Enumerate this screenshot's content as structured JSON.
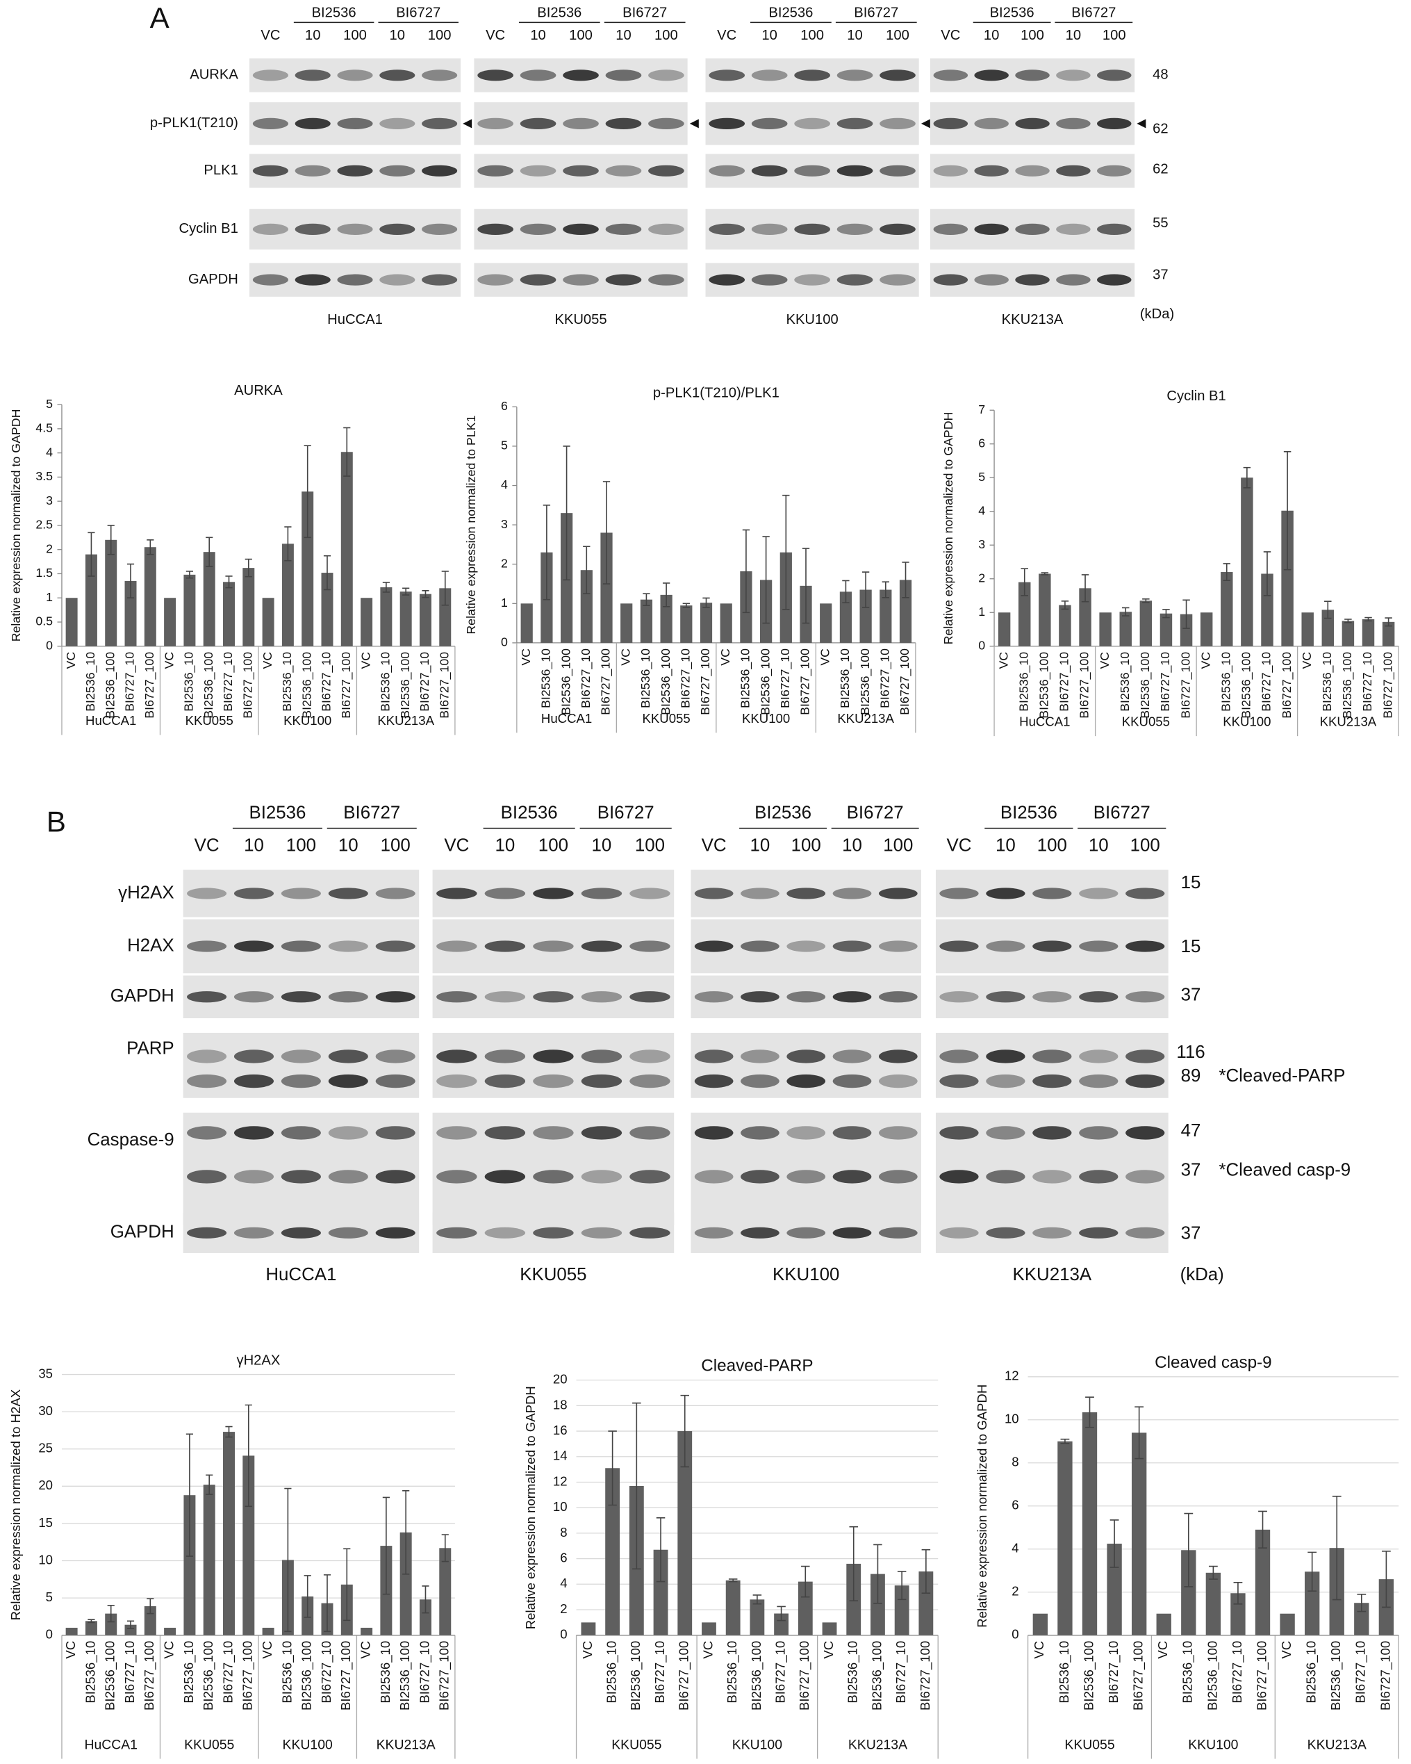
{
  "figure_a": {
    "label": "A",
    "cell_lines": [
      "HuCCA1",
      "KKU055",
      "KKU100",
      "KKU213A"
    ],
    "control": "VC",
    "drugs": [
      "BI2536",
      "BI6727"
    ],
    "doses": [
      "10",
      "100"
    ],
    "unit": "(kDa)",
    "rows": [
      {
        "name": "AURKA",
        "kda": [
          48
        ]
      },
      {
        "name": "p-PLK1(T210)",
        "kda": [
          62
        ]
      },
      {
        "name": "PLK1",
        "kda": [
          62
        ]
      },
      {
        "name": "Cyclin B1",
        "kda": [
          55
        ]
      },
      {
        "name": "GAPDH",
        "kda": [
          37
        ]
      }
    ]
  },
  "figure_b": {
    "label": "B",
    "cell_lines": [
      "HuCCA1",
      "KKU055",
      "KKU100",
      "KKU213A"
    ],
    "control": "VC",
    "drugs": [
      "BI2536",
      "BI6727"
    ],
    "doses": [
      "10",
      "100"
    ],
    "unit": "(kDa)",
    "rows": [
      {
        "name": "γH2AX",
        "kda": [
          15
        ]
      },
      {
        "name": "H2AX",
        "kda": [
          15
        ]
      },
      {
        "name": "GAPDH",
        "kda": [
          37
        ]
      },
      {
        "name": "PARP",
        "kda": [
          116,
          89
        ],
        "note": "*Cleaved-PARP"
      },
      {
        "name": "Caspase-9",
        "kda": [
          47,
          37
        ],
        "note": "*Cleaved casp-9"
      },
      {
        "name": "GAPDH",
        "kda": [
          37
        ]
      }
    ]
  },
  "chart_data": [
    {
      "type": "bar",
      "title": "AURKA",
      "y_label": "Relative expression normalized to GAPDH",
      "color": "#5f5f5f",
      "grid": false,
      "groups": [
        "HuCCA1",
        "KKU055",
        "KKU100",
        "KKU213A"
      ],
      "categories": [
        "VC",
        "BI2536_10",
        "BI2536_100",
        "BI6727_10",
        "BI6727_100",
        "VC",
        "BI2536_10",
        "BI2536_100",
        "BI6727_10",
        "BI6727_100",
        "VC",
        "BI2536_10",
        "BI2536_100",
        "BI6727_10",
        "BI6727_100",
        "VC",
        "BI2536_10",
        "BI2536_100",
        "BI6727_10",
        "BI6727_100"
      ],
      "values": [
        1,
        1.9,
        2.2,
        1.35,
        2.05,
        1,
        1.48,
        1.95,
        1.33,
        1.62,
        1,
        2.12,
        3.2,
        1.52,
        4.02,
        1,
        1.22,
        1.13,
        1.08,
        1.2
      ],
      "errors": [
        null,
        0.45,
        0.3,
        0.35,
        0.15,
        null,
        0.07,
        0.3,
        0.12,
        0.18,
        null,
        0.35,
        0.95,
        0.35,
        0.5,
        null,
        0.1,
        0.07,
        0.07,
        0.35
      ],
      "ylim": [
        0,
        5
      ],
      "yticks": [
        0,
        0.5,
        1,
        1.5,
        2,
        2.5,
        3,
        3.5,
        4,
        4.5,
        5
      ]
    },
    {
      "type": "bar",
      "title": "p-PLK1(T210)/PLK1",
      "y_label": "Relative expression normalized to PLK1",
      "color": "#5f5f5f",
      "grid": false,
      "groups": [
        "HuCCA1",
        "KKU055",
        "KKU100",
        "KKU213A"
      ],
      "categories": [
        "VC",
        "BI2536_10",
        "BI2536_100",
        "BI6727_10",
        "BI6727_100",
        "VC",
        "BI2536_10",
        "BI2536_100",
        "BI6727_10",
        "BI6727_100",
        "VC",
        "BI2536_10",
        "BI2536_100",
        "BI6727_10",
        "BI6727_100",
        "VC",
        "BI2536_10",
        "BI2536_100",
        "BI6727_10",
        "BI6727_100"
      ],
      "values": [
        1,
        2.3,
        3.3,
        1.85,
        2.8,
        1,
        1.1,
        1.22,
        0.95,
        1.02,
        1,
        1.82,
        1.6,
        2.3,
        1.45,
        1,
        1.3,
        1.35,
        1.35,
        1.6
      ],
      "errors": [
        null,
        1.2,
        1.7,
        0.6,
        1.3,
        null,
        0.15,
        0.3,
        0.05,
        0.12,
        null,
        1.05,
        1.1,
        1.45,
        0.95,
        null,
        0.28,
        0.45,
        0.2,
        0.45
      ],
      "ylim": [
        0,
        6
      ],
      "yticks": [
        0,
        1,
        2,
        3,
        4,
        5,
        6
      ]
    },
    {
      "type": "bar",
      "title": "Cyclin B1",
      "y_label": "Relative expression normalized to GAPDH",
      "color": "#5f5f5f",
      "grid": false,
      "groups": [
        "HuCCA1",
        "KKU055",
        "KKU100",
        "KKU213A"
      ],
      "categories": [
        "VC",
        "BI2536_10",
        "BI2536_100",
        "BI6727_10",
        "BI6727_100",
        "VC",
        "BI2536_10",
        "BI2536_100",
        "BI6727_10",
        "BI6727_100",
        "VC",
        "BI2536_10",
        "BI2536_100",
        "BI6727_10",
        "BI6727_100",
        "VC",
        "BI2536_10",
        "BI2536_100",
        "BI6727_10",
        "BI6727_100"
      ],
      "values": [
        1,
        1.9,
        2.15,
        1.22,
        1.72,
        1,
        1.02,
        1.35,
        0.97,
        0.95,
        1,
        2.2,
        5,
        2.15,
        4.02,
        1,
        1.08,
        0.75,
        0.8,
        0.72
      ],
      "errors": [
        null,
        0.4,
        0.03,
        0.12,
        0.4,
        null,
        0.12,
        0.05,
        0.12,
        0.42,
        null,
        0.25,
        0.3,
        0.65,
        1.75,
        null,
        0.25,
        0.05,
        0.05,
        0.12
      ],
      "ylim": [
        0,
        7
      ],
      "yticks": [
        0,
        1,
        2,
        3,
        4,
        5,
        6,
        7
      ]
    },
    {
      "type": "bar",
      "title": "γH2AX",
      "y_label": "Relative expression normalized to H2AX",
      "color": "#5f5f5f",
      "grid": true,
      "groups": [
        "HuCCA1",
        "KKU055",
        "KKU100",
        "KKU213A"
      ],
      "categories": [
        "VC",
        "BI2536_10",
        "BI2536_100",
        "BI6727_10",
        "BI6727_100",
        "VC",
        "BI2536_10",
        "BI2536_100",
        "BI6727_10",
        "BI6727_100",
        "VC",
        "BI2536_10",
        "BI2536_100",
        "BI6727_10",
        "BI6727_100",
        "VC",
        "BI2536_10",
        "BI2536_100",
        "BI6727_10",
        "BI6727_100"
      ],
      "values": [
        1,
        1.9,
        2.9,
        1.4,
        3.9,
        1,
        18.8,
        20.2,
        27.3,
        24.1,
        1,
        10.1,
        5.2,
        4.3,
        6.8,
        1,
        12,
        13.8,
        4.8,
        11.7
      ],
      "errors": [
        null,
        0.2,
        1.1,
        0.5,
        1,
        null,
        8.2,
        1.3,
        0.7,
        6.8,
        null,
        9.6,
        2.8,
        3.8,
        4.8,
        null,
        6.5,
        5.6,
        1.8,
        1.8
      ],
      "ylim": [
        0,
        35
      ],
      "yticks": [
        0,
        5,
        10,
        15,
        20,
        25,
        30,
        35
      ]
    },
    {
      "type": "bar",
      "title": "Cleaved-PARP",
      "y_label": "Relative expression normalized to GAPDH",
      "color": "#5f5f5f",
      "grid": true,
      "groups": [
        "KKU055",
        "KKU100",
        "KKU213A"
      ],
      "categories": [
        "VC",
        "BI2536_10",
        "BI2536_100",
        "BI6727_10",
        "BI6727_100",
        "VC",
        "BI2536_10",
        "BI2536_100",
        "BI6727_10",
        "BI6727_100",
        "VC",
        "BI2536_10",
        "BI2536_100",
        "BI6727_10",
        "BI6727_100"
      ],
      "values": [
        1,
        13.1,
        11.7,
        6.7,
        16,
        1,
        4.3,
        2.8,
        1.7,
        4.2,
        1,
        5.6,
        4.8,
        3.9,
        5
      ],
      "errors": [
        null,
        2.9,
        6.5,
        2.5,
        2.8,
        null,
        0.1,
        0.35,
        0.55,
        1.2,
        null,
        2.9,
        2.3,
        1.1,
        1.7
      ],
      "ylim": [
        0,
        20
      ],
      "yticks": [
        0,
        2,
        4,
        6,
        8,
        10,
        12,
        14,
        16,
        18,
        20
      ]
    },
    {
      "type": "bar",
      "title": "Cleaved casp-9",
      "y_label": "Relative expression normalized to GAPDH",
      "color": "#5f5f5f",
      "grid": true,
      "groups": [
        "KKU055",
        "KKU100",
        "KKU213A"
      ],
      "categories": [
        "VC",
        "BI2536_10",
        "BI2536_100",
        "BI6727_10",
        "BI6727_100",
        "VC",
        "BI2536_10",
        "BI2536_100",
        "BI6727_10",
        "BI6727_100",
        "VC",
        "BI2536_10",
        "BI2536_100",
        "BI6727_10",
        "BI6727_100"
      ],
      "values": [
        1,
        9,
        10.35,
        4.25,
        9.4,
        1,
        3.95,
        2.9,
        1.95,
        4.9,
        1,
        2.95,
        4.05,
        1.5,
        2.6
      ],
      "errors": [
        null,
        0.1,
        0.7,
        1.1,
        1.2,
        null,
        1.7,
        0.3,
        0.5,
        0.85,
        null,
        0.9,
        2.4,
        0.4,
        1.3
      ],
      "ylim": [
        0,
        12
      ],
      "yticks": [
        0,
        2,
        4,
        6,
        8,
        10,
        12
      ]
    }
  ]
}
